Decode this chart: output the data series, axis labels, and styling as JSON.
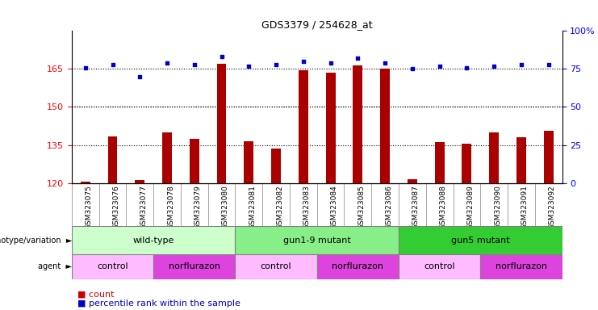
{
  "title": "GDS3379 / 254628_at",
  "samples": [
    "GSM323075",
    "GSM323076",
    "GSM323077",
    "GSM323078",
    "GSM323079",
    "GSM323080",
    "GSM323081",
    "GSM323082",
    "GSM323083",
    "GSM323084",
    "GSM323085",
    "GSM323086",
    "GSM323087",
    "GSM323088",
    "GSM323089",
    "GSM323090",
    "GSM323091",
    "GSM323092"
  ],
  "counts": [
    120.5,
    138.5,
    121.0,
    140.0,
    137.5,
    167.0,
    136.5,
    133.5,
    164.5,
    163.5,
    166.5,
    165.0,
    121.5,
    136.0,
    135.5,
    140.0,
    138.0,
    140.5
  ],
  "percentile_ranks": [
    76,
    78,
    70,
    79,
    78,
    83,
    77,
    78,
    80,
    79,
    82,
    79,
    75,
    77,
    76,
    77,
    78,
    78
  ],
  "ylim_left": [
    120,
    180
  ],
  "yticks_left": [
    120,
    135,
    150,
    165
  ],
  "ylim_right": [
    0,
    100
  ],
  "yticks_right": [
    0,
    25,
    50,
    75,
    100
  ],
  "bar_color": "#aa0000",
  "dot_color": "#0000cc",
  "genotype_groups": [
    {
      "label": "wild-type",
      "start": 0,
      "end": 6,
      "color": "#ccffcc"
    },
    {
      "label": "gun1-9 mutant",
      "start": 6,
      "end": 12,
      "color": "#88ee88"
    },
    {
      "label": "gun5 mutant",
      "start": 12,
      "end": 18,
      "color": "#33cc33"
    }
  ],
  "agent_groups": [
    {
      "label": "control",
      "start": 0,
      "end": 3,
      "color": "#ffbbff"
    },
    {
      "label": "norflurazon",
      "start": 3,
      "end": 6,
      "color": "#dd44dd"
    },
    {
      "label": "control",
      "start": 6,
      "end": 9,
      "color": "#ffbbff"
    },
    {
      "label": "norflurazon",
      "start": 9,
      "end": 12,
      "color": "#dd44dd"
    },
    {
      "label": "control",
      "start": 12,
      "end": 15,
      "color": "#ffbbff"
    },
    {
      "label": "norflurazon",
      "start": 15,
      "end": 18,
      "color": "#dd44dd"
    }
  ],
  "legend_count_color": "#cc0000",
  "legend_pct_color": "#0000cc",
  "legend_count_label": "count",
  "legend_pct_label": "percentile rank within the sample",
  "grid_values": [
    135,
    150,
    165
  ],
  "bar_width": 0.35
}
